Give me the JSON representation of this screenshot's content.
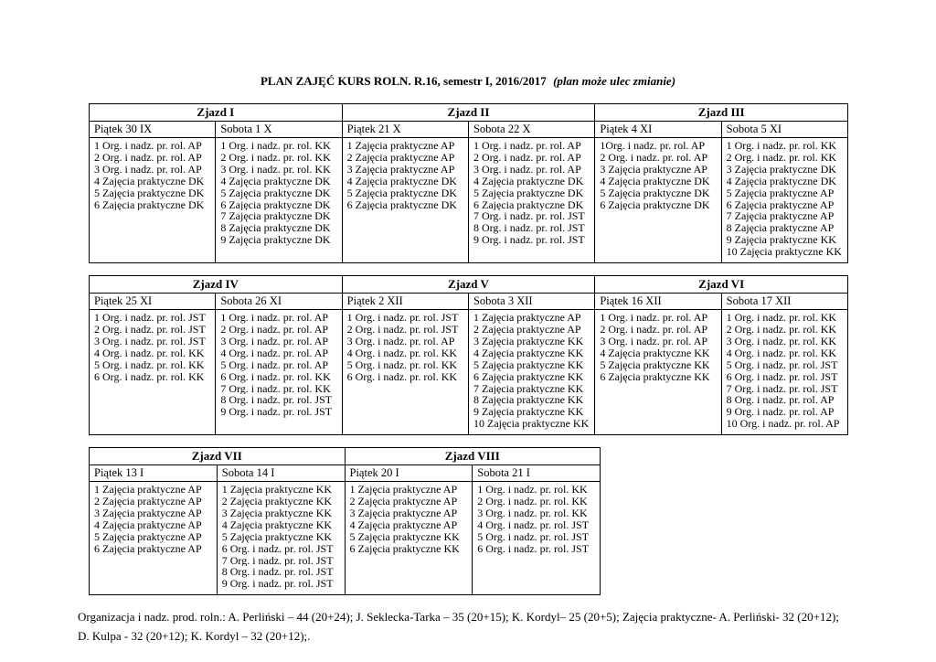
{
  "page": {
    "title": "PLAN  ZAJĘĆ KURS ROLN. R.16, semestr I, 2016/2017",
    "subtitle": "(plan może ulec zmianie)",
    "footer_line1": "Organizacja i nadz. prod. roln.: A. Perliński – 44 (20+24); J. Seklecka-Tarka –  35 (20+15); K. Kordyl–  25 (20+5); Zajęcia praktyczne- A. Perliński- 32 (20+12);",
    "footer_line2": "D. Kulpa - 32 (20+12); K. Kordyl – 32 (20+12);."
  },
  "tables": [
    {
      "groups": [
        {
          "name": "Zjazd  I",
          "days": [
            {
              "label": "Piątek 30  IX",
              "entries": [
                "1 Org. i nadz. pr. rol. AP",
                "2 Org. i nadz. pr. rol. AP",
                "3 Org. i nadz. pr. rol. AP",
                "4 Zajęcia praktyczne DK",
                "5 Zajęcia praktyczne DK",
                "6 Zajęcia praktyczne DK"
              ]
            },
            {
              "label": "Sobota 1 X",
              "entries": [
                "1 Org. i nadz. pr. rol. KK",
                "2 Org. i nadz. pr. rol. KK",
                "3 Org. i nadz. pr. rol. KK",
                "4 Zajęcia praktyczne DK",
                "5 Zajęcia praktyczne DK",
                "6 Zajęcia praktyczne DK",
                "7 Zajęcia praktyczne DK",
                "8 Zajęcia praktyczne DK",
                "9 Zajęcia praktyczne DK"
              ]
            }
          ]
        },
        {
          "name": "Zjazd II",
          "days": [
            {
              "label": "Piątek  21 X",
              "entries": [
                "1 Zajęcia praktyczne AP",
                "2 Zajęcia praktyczne AP",
                "3 Zajęcia praktyczne AP",
                "4 Zajęcia praktyczne DK",
                "5 Zajęcia praktyczne DK",
                "6 Zajęcia praktyczne DK"
              ]
            },
            {
              "label": "Sobota  22  X",
              "entries": [
                "1 Org. i nadz. pr. rol. AP",
                "2 Org. i nadz. pr. rol. AP",
                "3 Org. i nadz. pr. rol. AP",
                "4 Zajęcia praktyczne DK",
                "5 Zajęcia praktyczne DK",
                "6 Zajęcia praktyczne DK",
                "7 Org. i nadz. pr. rol. JST",
                "8 Org. i nadz. pr. rol. JST",
                "9 Org. i nadz. pr. rol. JST"
              ]
            }
          ]
        },
        {
          "name": "Zjazd  III",
          "days": [
            {
              "label": "Piątek  4 XI",
              "entries": [
                "1Org. i nadz. pr. rol. AP",
                "2 Org. i nadz. pr. rol. AP",
                "3 Zajęcia praktyczne AP",
                "4 Zajęcia praktyczne DK",
                "5 Zajęcia praktyczne DK",
                "6 Zajęcia praktyczne DK"
              ]
            },
            {
              "label": "Sobota  5 XI",
              "entries": [
                "1 Org. i nadz. pr. rol. KK",
                "2  Org. i nadz. pr. rol. KK",
                "3 Zajęcia praktyczne DK",
                "4 Zajęcia praktyczne DK",
                "5 Zajęcia praktyczne AP",
                "6 Zajęcia praktyczne AP",
                "7 Zajęcia praktyczne AP",
                "8 Zajęcia praktyczne AP",
                "9 Zajęcia praktyczne KK",
                "10 Zajęcia praktyczne KK"
              ]
            }
          ]
        }
      ]
    },
    {
      "groups": [
        {
          "name": "Zjazd  IV",
          "days": [
            {
              "label": "Piątek 25 XI",
              "entries": [
                "1 Org. i nadz. pr. rol. JST",
                "2 Org. i nadz. pr. rol. JST",
                "3 Org. i nadz. pr. rol. JST",
                "4 Org. i nadz. pr. rol. KK",
                "5 Org. i nadz. pr. rol. KK",
                "6 Org. i nadz. pr. rol. KK"
              ]
            },
            {
              "label": "Sobota 26 XI",
              "entries": [
                "1 Org. i nadz. pr. rol. AP",
                "2 Org. i nadz. pr. rol. AP",
                "3 Org. i nadz. pr. rol. AP",
                "4 Org. i nadz. pr. rol. AP",
                "5 Org. i nadz. pr. rol. AP",
                "6 Org. i nadz. pr. rol. KK",
                "7 Org. i nadz. pr. rol. KK",
                "8 Org. i nadz. pr. rol. JST",
                "9 Org. i nadz. pr. rol. JST"
              ]
            }
          ]
        },
        {
          "name": "Zjazd V",
          "days": [
            {
              "label": "Piątek  2 XII",
              "entries": [
                "1 Org. i nadz. pr. rol. JST",
                "2 Org. i nadz. pr. rol. JST",
                "3 Org. i nadz. pr. rol. AP",
                "4 Org. i nadz. pr. rol. KK",
                "5 Org. i nadz. pr. rol. KK",
                "6 Org. i nadz. pr. rol. KK"
              ]
            },
            {
              "label": "Sobota 3  XII",
              "entries": [
                "1 Zajęcia praktyczne AP",
                "2 Zajęcia praktyczne AP",
                "3 Zajęcia praktyczne KK",
                "4 Zajęcia praktyczne KK",
                "5 Zajęcia praktyczne KK",
                "6 Zajęcia praktyczne KK",
                "7 Zajęcia praktyczne KK",
                "8 Zajęcia praktyczne KK",
                "9 Zajęcia praktyczne KK",
                "10 Zajęcia praktyczne KK"
              ]
            }
          ]
        },
        {
          "name": "Zjazd  VI",
          "days": [
            {
              "label": "Piątek  16  XII",
              "entries": [
                "1 Org. i nadz. pr. rol. AP",
                "2 Org. i nadz. pr. rol. AP",
                "3 Org. i nadz. pr. rol. AP",
                "4 Zajęcia praktyczne KK",
                "5 Zajęcia praktyczne KK",
                "6 Zajęcia praktyczne KK"
              ]
            },
            {
              "label": "Sobota 17 XII",
              "entries": [
                "1 Org. i nadz. pr. rol. KK",
                "2 Org. i nadz. pr. rol. KK",
                "3 Org. i nadz. pr. rol. KK",
                "4 Org. i nadz. pr. rol. KK",
                "5 Org. i nadz. pr. rol. JST",
                "6 Org. i nadz. pr. rol. JST",
                "7 Org. i nadz. pr. rol. JST",
                "8 Org. i nadz. pr. rol. AP",
                "9 Org. i nadz. pr. rol. AP",
                "10 Org. i nadz. pr. rol. AP"
              ]
            }
          ]
        }
      ]
    },
    {
      "groups": [
        {
          "name": "Zjazd  VII",
          "days": [
            {
              "label": "Piątek  13 I",
              "entries": [
                "1 Zajęcia praktyczne AP",
                "2 Zajęcia praktyczne AP",
                "3 Zajęcia praktyczne AP",
                "4 Zajęcia praktyczne AP",
                "5 Zajęcia praktyczne AP",
                "6 Zajęcia praktyczne AP"
              ]
            },
            {
              "label": "Sobota 14 I",
              "entries": [
                "1 Zajęcia praktyczne KK",
                "2 Zajęcia praktyczne KK",
                "3 Zajęcia praktyczne KK",
                "4 Zajęcia praktyczne KK",
                "5 Zajęcia praktyczne KK",
                "6 Org. i nadz. pr. rol. JST",
                "7 Org. i nadz. pr. rol. JST",
                "8 Org. i nadz. pr. rol. JST",
                "9 Org. i nadz. pr. rol. JST"
              ]
            }
          ]
        },
        {
          "name": "Zjazd VIII",
          "days": [
            {
              "label": "Piątek 20 I",
              "entries": [
                "1 Zajęcia praktyczne AP",
                "2 Zajęcia praktyczne AP",
                "3 Zajęcia praktyczne AP",
                "4 Zajęcia praktyczne AP",
                "5 Zajęcia praktyczne KK",
                "6 Zajęcia praktyczne KK"
              ]
            },
            {
              "label": "Sobota  21 I",
              "entries": [
                "1 Org. i nadz. pr. rol. KK",
                "2 Org. i nadz. pr. rol. KK",
                "3 Org. i nadz. pr. rol. KK",
                "4 Org. i nadz. pr. rol. JST",
                "5 Org. i nadz. pr. rol. JST",
                "6 Org. i nadz. pr. rol. JST"
              ]
            }
          ]
        }
      ]
    }
  ]
}
